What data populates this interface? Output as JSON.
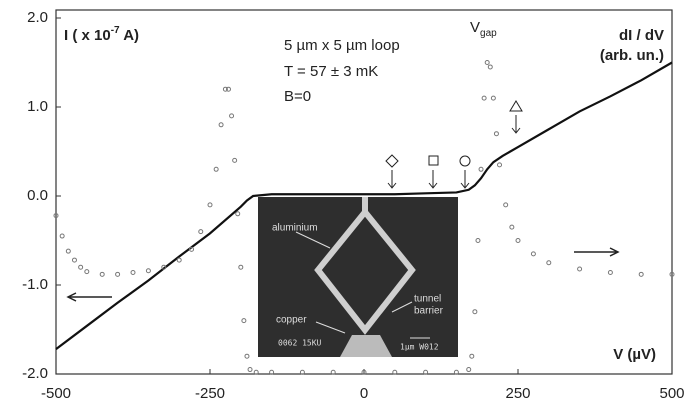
{
  "chart_data": {
    "type": "line",
    "xlim": [
      -500,
      500
    ],
    "ylim": [
      -2.0,
      2.0
    ],
    "xticks": [
      -500,
      -250,
      0,
      250,
      500
    ],
    "yticks": [
      {
        "value": -2,
        "label": "-2.0"
      },
      {
        "value": -1,
        "label": "-1.0"
      },
      {
        "value": 0,
        "label": "0.0"
      },
      {
        "value": 1,
        "label": "1.0"
      },
      {
        "value": 2,
        "label": "2.0"
      }
    ],
    "grid": false,
    "ylabel": {
      "text": "I ( x 10",
      "sup": "-7",
      "tail": " A)"
    },
    "y2label": [
      "dI / dV",
      "(arb. un.)"
    ],
    "xlabel": "V (µV)",
    "notes": [
      "5 µm x 5 µm loop",
      "T = 57 ± 3 mK",
      "B=0"
    ],
    "vgap": {
      "text": "V",
      "sub": "gap"
    },
    "inset_labels": [
      "aluminium",
      "copper",
      "tunnel",
      "barrier",
      "0062  15KU",
      "1µm  W012"
    ],
    "series": [
      {
        "style": "line",
        "color": "#111111",
        "x": [
          -500,
          -450,
          -400,
          -350,
          -300,
          -250,
          -200,
          -190,
          -180,
          -150,
          -100,
          -50,
          0,
          50,
          100,
          150,
          170,
          180,
          190,
          200,
          210,
          225,
          250,
          300,
          350,
          400,
          450,
          500
        ],
        "values": [
          -1.72,
          -1.46,
          -1.2,
          -0.95,
          -0.68,
          -0.42,
          -0.12,
          -0.05,
          0.0,
          0.02,
          0.02,
          0.02,
          0.02,
          0.02,
          0.03,
          0.04,
          0.07,
          0.12,
          0.2,
          0.3,
          0.38,
          0.45,
          0.55,
          0.75,
          0.95,
          1.12,
          1.3,
          1.5
        ]
      },
      {
        "style": "dots",
        "color": "#777777",
        "x": [
          -500,
          -490,
          -480,
          -470,
          -460,
          -450,
          -425,
          -400,
          -375,
          -350,
          -325,
          -300,
          -280,
          -265,
          -250,
          -240,
          -232,
          -225,
          -220,
          -215,
          -210,
          -205,
          -200,
          -195,
          -190,
          -185,
          -175,
          -150,
          -100,
          -50,
          0,
          50,
          100,
          150,
          170,
          175,
          180,
          185,
          190,
          195,
          200,
          205,
          210,
          215,
          220,
          230,
          240,
          250,
          275,
          300,
          350,
          400,
          450,
          500
        ],
        "values": [
          -0.22,
          -0.45,
          -0.62,
          -0.72,
          -0.8,
          -0.85,
          -0.88,
          -0.88,
          -0.86,
          -0.84,
          -0.8,
          -0.72,
          -0.6,
          -0.4,
          -0.1,
          0.3,
          0.8,
          1.2,
          1.2,
          0.9,
          0.4,
          -0.2,
          -0.8,
          -1.4,
          -1.8,
          -1.95,
          -1.98,
          -1.98,
          -1.98,
          -1.98,
          -1.98,
          -1.98,
          -1.98,
          -1.98,
          -1.95,
          -1.8,
          -1.3,
          -0.5,
          0.3,
          1.1,
          1.5,
          1.45,
          1.1,
          0.7,
          0.35,
          -0.1,
          -0.35,
          -0.5,
          -0.65,
          -0.75,
          -0.82,
          -0.86,
          -0.88,
          -0.88
        ]
      }
    ]
  }
}
